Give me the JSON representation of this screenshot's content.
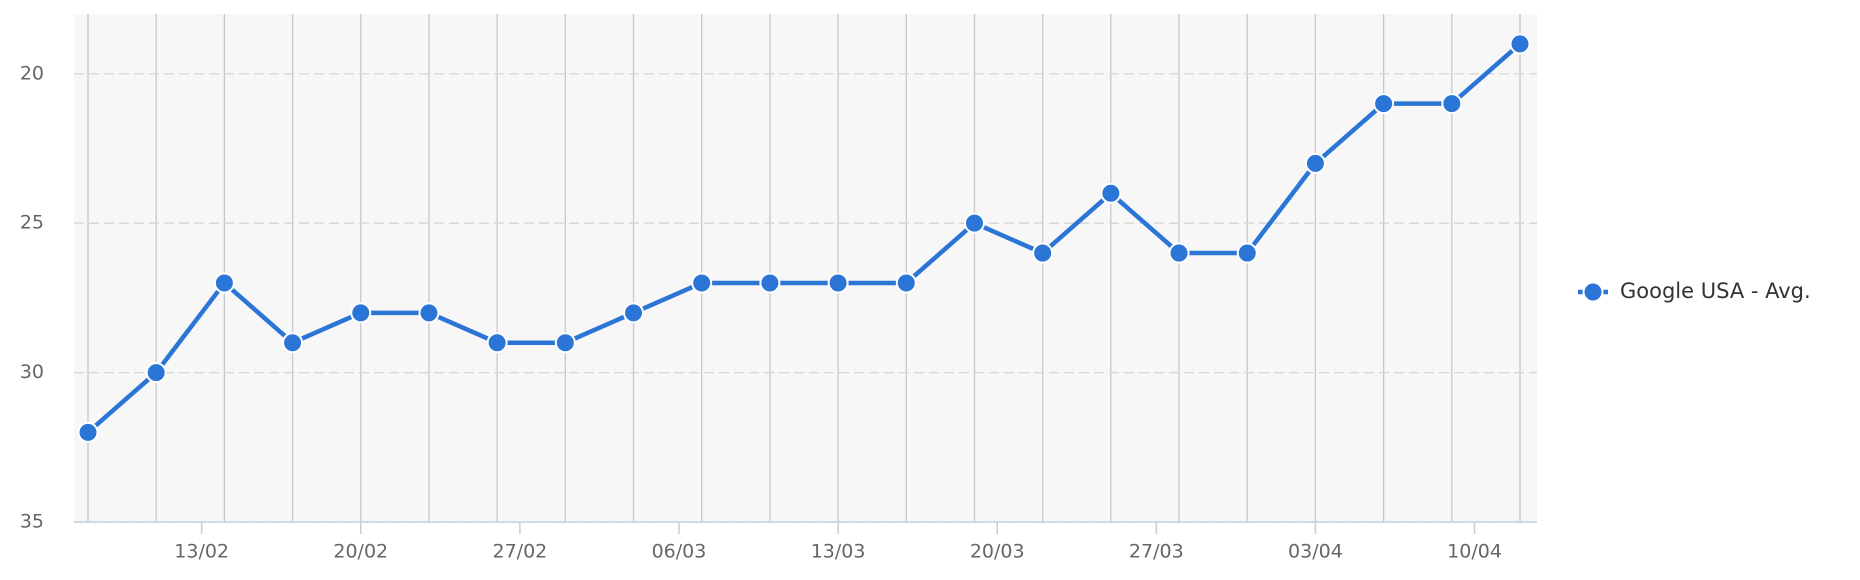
{
  "chart_data": {
    "type": "line",
    "x": [
      "08/02",
      "11/02",
      "14/02",
      "17/02",
      "20/02",
      "23/02",
      "26/02",
      "01/03",
      "04/03",
      "07/03",
      "10/03",
      "13/03",
      "16/03",
      "19/03",
      "22/03",
      "25/03",
      "28/03",
      "31/03",
      "03/04",
      "06/04",
      "09/04",
      "12/04"
    ],
    "series": [
      {
        "name": "Google USA - Avg.",
        "color": "#2a75d6",
        "values": [
          32,
          30,
          27,
          29,
          28,
          28,
          29,
          29,
          28,
          27,
          27,
          27,
          27,
          25,
          26,
          24,
          26,
          26,
          23,
          21,
          21,
          19
        ]
      }
    ],
    "ylim": [
      35,
      18
    ],
    "yticks": [
      20,
      25,
      30,
      35
    ],
    "xticks": [
      "13/02",
      "20/02",
      "27/02",
      "06/03",
      "13/03",
      "20/03",
      "27/03",
      "03/04",
      "10/04"
    ],
    "grid": true,
    "legend": "right"
  }
}
